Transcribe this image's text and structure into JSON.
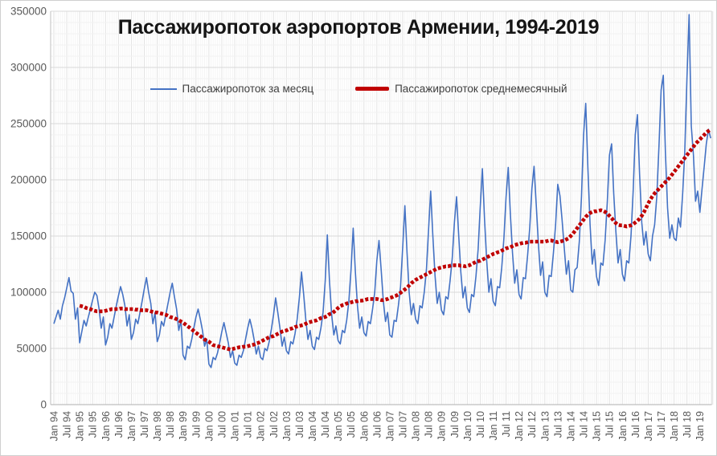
{
  "chart_data": {
    "type": "line",
    "title": "Пассажиропоток аэропортов Армении, 1994-2019",
    "x_start": "Jan 1994",
    "x_frequency": "monthly",
    "grid": true,
    "legend_position": "top-center",
    "ylim": [
      0,
      350000
    ],
    "y_major_step": 50000,
    "y_minor_step": 10000,
    "y_tick_labels": [
      "0",
      "50000",
      "100000",
      "150000",
      "200000",
      "250000",
      "300000",
      "350000"
    ],
    "x_tick_labels": [
      "Jan 94",
      "Jul 94",
      "Jan 95",
      "Jul 95",
      "Jan 96",
      "Jul 96",
      "Jan 97",
      "Jul 97",
      "Jan 98",
      "Jul 98",
      "Jan 99",
      "Jul 99",
      "Jan 00",
      "Jul 00",
      "Jan 01",
      "Jul 01",
      "Jan 02",
      "Jul 02",
      "Jan 03",
      "Jul 03",
      "Jan 04",
      "Jul 04",
      "Jan 05",
      "Jul 05",
      "Jan 06",
      "Jul 06",
      "Jan 07",
      "Jul 07",
      "Jan 08",
      "Jul 08",
      "Jan 09",
      "Jul 09",
      "Jan 10",
      "Jul 10",
      "Jan 11",
      "Jul 11",
      "Jan 12",
      "Jul 12",
      "Jan 13",
      "Jul 13",
      "Jan 14",
      "Jul 14",
      "Jan 15",
      "Jul 15",
      "Jan 16",
      "Jul 16",
      "Jan 17",
      "Jul 17",
      "Jan 18",
      "Jul 18",
      "Jan 19"
    ],
    "x_tick_every_months": 6,
    "colors": {
      "monthly": "#4472C4",
      "average": "#C00000",
      "axis_text": "#595959",
      "grid_major": "#D9D9D9",
      "grid_minor": "#F2F2F2",
      "grid_vert_major": "#E2E2E2",
      "grid_vert_minor": "#F5F5F5",
      "axis_line": "#BFBFBF"
    },
    "series": [
      {
        "name": "Пассажиропоток за месяц",
        "color": "#4472C4",
        "width": 1.6,
        "dash": "",
        "start_month_index": 0,
        "values": [
          72000,
          78000,
          84000,
          76000,
          88000,
          95000,
          104000,
          113000,
          101000,
          99000,
          76000,
          86000,
          55000,
          65000,
          75000,
          70000,
          78000,
          85000,
          93000,
          100000,
          97000,
          85000,
          68000,
          78000,
          53000,
          60000,
          72000,
          68000,
          78000,
          88000,
          97000,
          105000,
          98000,
          88000,
          70000,
          80000,
          58000,
          64000,
          76000,
          72000,
          82000,
          92000,
          103000,
          113000,
          100000,
          90000,
          72000,
          82000,
          56000,
          62000,
          74000,
          70000,
          80000,
          90000,
          100000,
          108000,
          96000,
          85000,
          66000,
          75000,
          44000,
          40000,
          52000,
          50000,
          58000,
          68000,
          78000,
          85000,
          76000,
          66000,
          52000,
          58000,
          36000,
          33000,
          42000,
          40000,
          46000,
          55000,
          65000,
          73000,
          64000,
          55000,
          42000,
          48000,
          37000,
          35000,
          44000,
          42000,
          48000,
          58000,
          68000,
          76000,
          68000,
          58000,
          45000,
          52000,
          42000,
          40000,
          50000,
          48000,
          56000,
          67000,
          80000,
          95000,
          82000,
          68000,
          52000,
          60000,
          48000,
          45000,
          56000,
          54000,
          63000,
          76000,
          95000,
          118000,
          98000,
          76000,
          58000,
          66000,
          52000,
          49000,
          60000,
          58000,
          68000,
          82000,
          110000,
          151000,
          110000,
          80000,
          62000,
          70000,
          57000,
          54000,
          66000,
          64000,
          75000,
          92000,
          120000,
          157000,
          118000,
          88000,
          68000,
          78000,
          64000,
          61000,
          74000,
          72000,
          85000,
          100000,
          128000,
          146000,
          120000,
          92000,
          74000,
          82000,
          62000,
          60000,
          75000,
          74000,
          88000,
          105000,
          140000,
          177000,
          135000,
          100000,
          80000,
          90000,
          76000,
          72000,
          88000,
          86000,
          100000,
          120000,
          155000,
          190000,
          150000,
          115000,
          90000,
          100000,
          84000,
          80000,
          96000,
          94000,
          110000,
          130000,
          162000,
          185000,
          150000,
          118000,
          95000,
          105000,
          86000,
          82000,
          98000,
          96000,
          114000,
          138000,
          175000,
          210000,
          165000,
          128000,
          100000,
          112000,
          92000,
          88000,
          105000,
          104000,
          122000,
          148000,
          185000,
          211000,
          170000,
          135000,
          108000,
          120000,
          98000,
          94000,
          113000,
          112000,
          133000,
          158000,
          192000,
          212000,
          178000,
          143000,
          115000,
          127000,
          100000,
          96000,
          115000,
          114000,
          135000,
          160000,
          196000,
          186000,
          165000,
          140000,
          116000,
          128000,
          102000,
          100000,
          120000,
          122000,
          145000,
          185000,
          240000,
          268000,
          210000,
          160000,
          125000,
          138000,
          114000,
          106000,
          126000,
          124000,
          146000,
          180000,
          222000,
          232000,
          188000,
          154000,
          126000,
          138000,
          116000,
          110000,
          128000,
          126000,
          150000,
          190000,
          240000,
          258000,
          205000,
          162000,
          142000,
          154000,
          134000,
          128000,
          150000,
          160000,
          185000,
          230000,
          280000,
          293000,
          225000,
          175000,
          148000,
          160000,
          148000,
          146000,
          166000,
          158000,
          188000,
          225000,
          290000,
          347000,
          248000,
          222000,
          181000,
          190000,
          171000,
          192000,
          212000,
          232000,
          245000,
          237000
        ]
      },
      {
        "name": "Пассажиропоток среднемесячный",
        "color": "#C00000",
        "width": 4.6,
        "dash": "4 2.4",
        "start_month_index": 12,
        "values": [
          88000,
          87500,
          87000,
          86000,
          85500,
          85000,
          84000,
          83500,
          83000,
          83000,
          83000,
          83000,
          83500,
          84000,
          84500,
          85000,
          85000,
          85000,
          85000,
          85500,
          85500,
          85000,
          85000,
          85000,
          85000,
          85000,
          84500,
          84500,
          84000,
          84000,
          84000,
          84000,
          83500,
          83000,
          82500,
          82000,
          82000,
          81500,
          81000,
          80500,
          80000,
          79000,
          78000,
          77500,
          77000,
          76000,
          75000,
          74000,
          73000,
          71500,
          70000,
          68500,
          67000,
          65500,
          64000,
          62500,
          61000,
          59500,
          58000,
          57000,
          56000,
          54500,
          53000,
          52500,
          52000,
          51500,
          51000,
          50500,
          50000,
          49500,
          49000,
          49500,
          50000,
          50500,
          51000,
          51000,
          51500,
          51500,
          52000,
          52500,
          53000,
          53500,
          54500,
          55000,
          56000,
          57000,
          58000,
          59000,
          60000,
          60500,
          61000,
          62000,
          63000,
          64000,
          65000,
          65500,
          66000,
          67000,
          67500,
          68000,
          69000,
          69500,
          70000,
          70500,
          71000,
          72000,
          73000,
          73500,
          74000,
          74500,
          75000,
          76000,
          77000,
          77500,
          78000,
          79000,
          80500,
          81000,
          82500,
          84000,
          86000,
          87500,
          88500,
          89000,
          90000,
          90500,
          91000,
          91500,
          92000,
          92000,
          92500,
          92500,
          93000,
          93500,
          94000,
          94000,
          94000,
          94000,
          94000,
          93500,
          93000,
          93000,
          93500,
          94000,
          95000,
          95500,
          96500,
          97000,
          98000,
          99500,
          101000,
          102500,
          104000,
          106000,
          108000,
          109500,
          111000,
          112000,
          113000,
          114000,
          115000,
          116000,
          117000,
          118000,
          119000,
          120000,
          121000,
          121500,
          122000,
          122500,
          123000,
          123000,
          123500,
          124000,
          124000,
          124000,
          124000,
          123500,
          123500,
          123000,
          123500,
          124000,
          125000,
          126000,
          127000,
          127500,
          128000,
          129000,
          130000,
          131000,
          132000,
          133000,
          134000,
          134500,
          135500,
          136000,
          137000,
          138000,
          139000,
          139500,
          140000,
          141000,
          142000,
          142500,
          143000,
          143500,
          144000,
          144000,
          144500,
          145000,
          145000,
          145000,
          145000,
          145000,
          145000,
          145000,
          145000,
          145500,
          146000,
          146000,
          145500,
          145000,
          144500,
          145000,
          145500,
          146000,
          147000,
          148000,
          150000,
          152000,
          154500,
          157000,
          159500,
          162000,
          164500,
          167000,
          169000,
          170500,
          171500,
          172000,
          172000,
          172500,
          173000,
          172500,
          171500,
          170000,
          168000,
          166000,
          163500,
          161500,
          160000,
          159500,
          159500,
          159000,
          158500,
          159000,
          159500,
          160500,
          162000,
          163500,
          165500,
          168000,
          171000,
          175000,
          179000,
          182500,
          185500,
          188000,
          190000,
          192000,
          194000,
          196000,
          198000,
          200000,
          202000,
          204500,
          207000,
          209500,
          212000,
          214500,
          217000,
          219500,
          222000,
          224500,
          227000,
          229500,
          232000,
          234000,
          236000,
          238000,
          240000,
          242000,
          243500,
          245000
        ]
      }
    ]
  }
}
